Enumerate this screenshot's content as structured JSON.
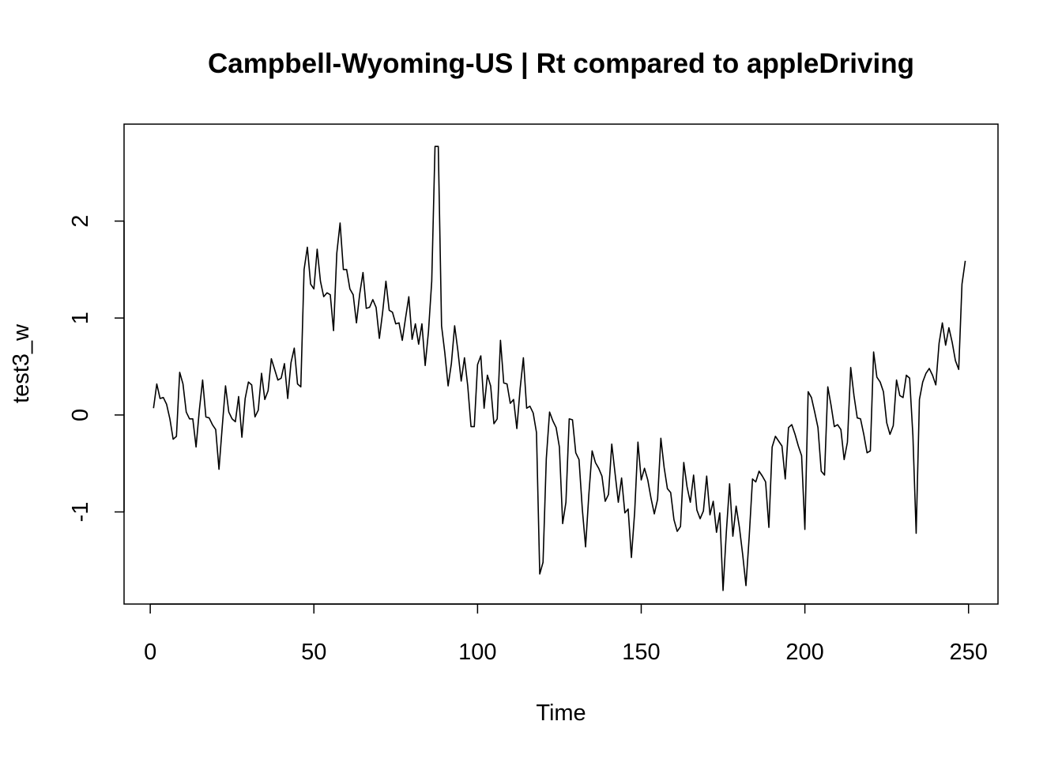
{
  "chart_data": {
    "type": "line",
    "title": "Campbell-Wyoming-US | Rt compared to appleDriving",
    "xlabel": "Time",
    "ylabel": "test3_w",
    "xlim": [
      -8,
      259
    ],
    "ylim": [
      -1.95,
      3.0
    ],
    "x_ticks": [
      0,
      50,
      100,
      150,
      200,
      250
    ],
    "y_ticks": [
      -1,
      0,
      1,
      2
    ],
    "grid": false,
    "legend": "none",
    "colors": {
      "line": "#000000",
      "frame": "#000000",
      "background": "#ffffff"
    },
    "series": [
      {
        "x_start": 1,
        "values": [
          0.07,
          0.32,
          0.17,
          0.18,
          0.11,
          -0.04,
          -0.25,
          -0.22,
          0.44,
          0.32,
          0.03,
          -0.04,
          -0.04,
          -0.33,
          0.05,
          0.36,
          -0.02,
          -0.03,
          -0.1,
          -0.15,
          -0.56,
          -0.12,
          0.3,
          0.03,
          -0.04,
          -0.07,
          0.19,
          -0.23,
          0.17,
          0.34,
          0.31,
          -0.02,
          0.05,
          0.43,
          0.16,
          0.25,
          0.58,
          0.47,
          0.36,
          0.38,
          0.53,
          0.17,
          0.54,
          0.69,
          0.32,
          0.29,
          1.5,
          1.73,
          1.35,
          1.3,
          1.71,
          1.38,
          1.22,
          1.26,
          1.24,
          0.87,
          1.67,
          1.98,
          1.5,
          1.5,
          1.3,
          1.24,
          0.95,
          1.25,
          1.47,
          1.1,
          1.11,
          1.19,
          1.11,
          0.79,
          1.06,
          1.38,
          1.08,
          1.06,
          0.94,
          0.95,
          0.77,
          1.0,
          1.22,
          0.78,
          0.94,
          0.73,
          0.94,
          0.51,
          0.86,
          1.38,
          2.77,
          2.77,
          0.92,
          0.64,
          0.3,
          0.53,
          0.92,
          0.66,
          0.35,
          0.59,
          0.3,
          -0.12,
          -0.12,
          0.52,
          0.61,
          0.07,
          0.41,
          0.3,
          -0.09,
          -0.04,
          0.77,
          0.33,
          0.32,
          0.12,
          0.16,
          -0.14,
          0.27,
          0.59,
          0.07,
          0.09,
          0.02,
          -0.18,
          -1.64,
          -1.52,
          -0.45,
          0.03,
          -0.06,
          -0.13,
          -0.33,
          -1.12,
          -0.9,
          -0.04,
          -0.05,
          -0.39,
          -0.46,
          -0.97,
          -1.36,
          -0.82,
          -0.37,
          -0.49,
          -0.55,
          -0.63,
          -0.89,
          -0.82,
          -0.3,
          -0.6,
          -0.9,
          -0.65,
          -1.01,
          -0.97,
          -1.47,
          -1.0,
          -0.28,
          -0.67,
          -0.55,
          -0.67,
          -0.86,
          -1.02,
          -0.87,
          -0.24,
          -0.54,
          -0.76,
          -0.8,
          -1.08,
          -1.2,
          -1.15,
          -0.49,
          -0.74,
          -0.9,
          -0.62,
          -0.98,
          -1.07,
          -0.99,
          -0.63,
          -1.03,
          -0.89,
          -1.21,
          -1.01,
          -1.81,
          -1.21,
          -0.71,
          -1.25,
          -0.94,
          -1.16,
          -1.44,
          -1.76,
          -1.25,
          -0.66,
          -0.69,
          -0.58,
          -0.63,
          -0.69,
          -1.16,
          -0.33,
          -0.22,
          -0.27,
          -0.32,
          -0.66,
          -0.13,
          -0.1,
          -0.2,
          -0.32,
          -0.42,
          -1.18,
          0.24,
          0.18,
          0.03,
          -0.13,
          -0.58,
          -0.62,
          0.29,
          0.1,
          -0.12,
          -0.1,
          -0.15,
          -0.46,
          -0.28,
          0.49,
          0.2,
          -0.03,
          -0.04,
          -0.2,
          -0.39,
          -0.37,
          0.65,
          0.39,
          0.34,
          0.24,
          -0.08,
          -0.2,
          -0.11,
          0.36,
          0.2,
          0.18,
          0.41,
          0.38,
          -0.21,
          -1.22,
          0.16,
          0.34,
          0.43,
          0.48,
          0.41,
          0.31,
          0.74,
          0.95,
          0.72,
          0.9,
          0.75,
          0.56,
          0.47,
          1.35,
          1.59
        ]
      }
    ]
  }
}
